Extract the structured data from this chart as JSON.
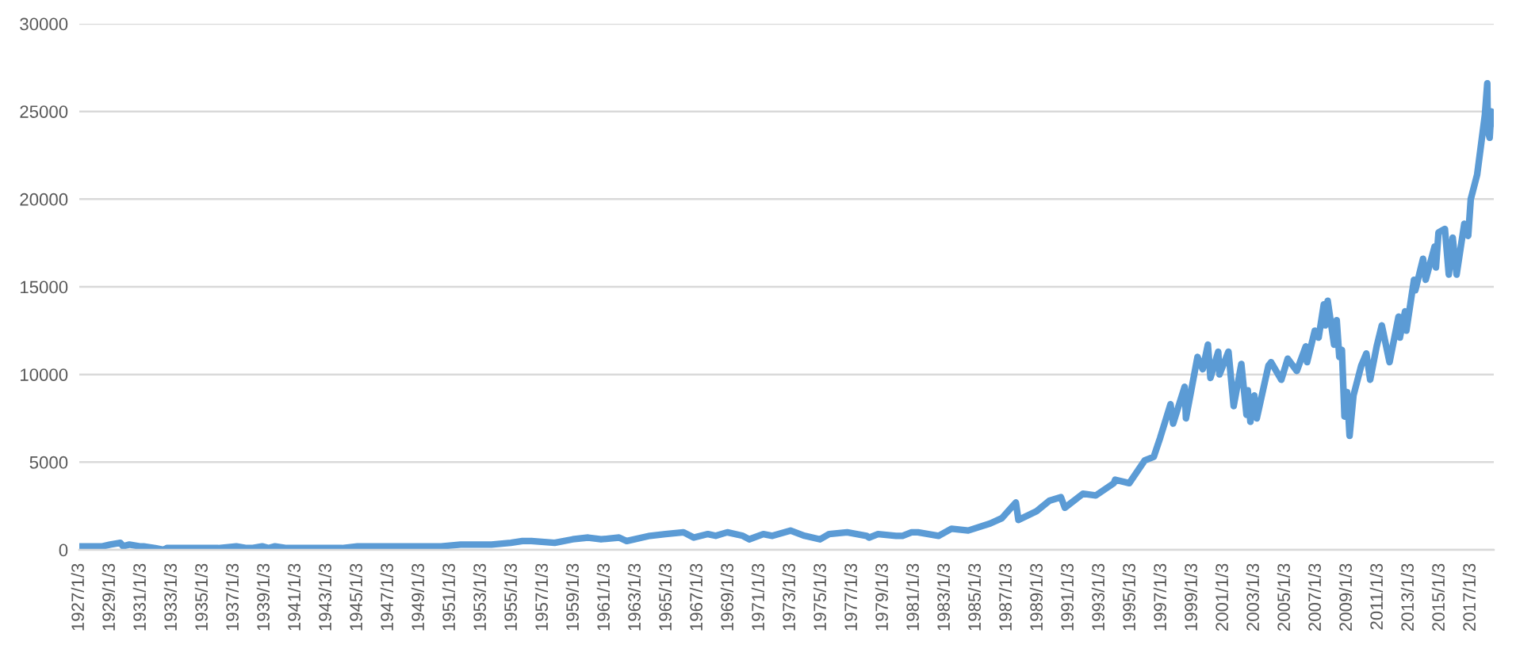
{
  "chart_data": {
    "type": "line",
    "x": [
      "1927-01-03",
      "1927-07",
      "1928-01",
      "1928-07",
      "1929-01",
      "1929-09",
      "1929-11",
      "1930-04",
      "1930-12",
      "1931-03",
      "1931-12",
      "1932-07",
      "1932-09",
      "1933-02",
      "1933-07",
      "1934-02",
      "1934-07",
      "1935-03",
      "1936-01",
      "1937-03",
      "1937-11",
      "1938-03",
      "1938-11",
      "1939-04",
      "1939-09",
      "1940-06",
      "1941-01",
      "1942-04",
      "1943-07",
      "1944-01",
      "1945-01",
      "1946-05",
      "1946-10",
      "1947-05",
      "1948-06",
      "1949-06",
      "1950-06",
      "1951-09",
      "1952-12",
      "1953-09",
      "1954-12",
      "1955-09",
      "1956-04",
      "1957-10",
      "1958-12",
      "1959-12",
      "1960-10",
      "1961-12",
      "1962-06",
      "1963-12",
      "1964-12",
      "1966-02",
      "1966-10",
      "1967-09",
      "1968-03",
      "1968-12",
      "1969-12",
      "1970-05",
      "1971-04",
      "1971-11",
      "1973-01",
      "1973-12",
      "1974-12",
      "1975-07",
      "1976-09",
      "1977-12",
      "1978-02",
      "1978-09",
      "1979-11",
      "1980-04",
      "1980-11",
      "1981-04",
      "1982-08",
      "1983-06",
      "1984-07",
      "1985-12",
      "1986-09",
      "1987-08",
      "1987-10",
      "1988-12",
      "1989-10",
      "1990-07",
      "1990-10",
      "1991-12",
      "1992-10",
      "1993-12",
      "1994-01",
      "1994-12",
      "1995-12",
      "1996-07",
      "1996-12",
      "1997-08",
      "1997-10",
      "1998-07",
      "1998-08",
      "1999-05",
      "1999-09",
      "2000-01",
      "2000-03",
      "2000-09",
      "2000-10",
      "2001-05",
      "2001-09",
      "2002-03",
      "2002-07",
      "2002-08",
      "2002-10",
      "2003-01",
      "2003-03",
      "2003-12",
      "2004-02",
      "2004-10",
      "2005-03",
      "2005-10",
      "2006-05",
      "2006-06",
      "2006-12",
      "2007-03",
      "2007-07",
      "2007-08",
      "2007-10",
      "2008-03",
      "2008-05",
      "2008-07",
      "2008-09",
      "2008-11",
      "2009-01",
      "2009-03",
      "2009-06",
      "2009-12",
      "2010-04",
      "2010-07",
      "2010-12",
      "2011-04",
      "2011-10",
      "2012-05",
      "2012-06",
      "2012-10",
      "2012-11",
      "2013-05",
      "2013-06",
      "2013-12",
      "2014-02",
      "2014-09",
      "2014-10",
      "2014-12",
      "2015-05",
      "2015-08",
      "2015-11",
      "2016-02",
      "2016-08",
      "2016-11",
      "2017-01",
      "2017-06",
      "2017-12",
      "2018-01-26",
      "2018-02-08",
      "2018-03-23",
      "2018-05",
      "2018-06-29"
    ],
    "series": [
      {
        "color": "#5b9bd5",
        "values": [
          200,
          200,
          200,
          200,
          300,
          400,
          200,
          300,
          200,
          200,
          100,
          0,
          100,
          100,
          100,
          100,
          100,
          100,
          100,
          200,
          100,
          100,
          200,
          100,
          200,
          100,
          100,
          100,
          100,
          100,
          200,
          200,
          200,
          200,
          200,
          200,
          200,
          300,
          300,
          300,
          400,
          500,
          500,
          400,
          600,
          700,
          600,
          700,
          500,
          800,
          900,
          1000,
          700,
          900,
          800,
          1000,
          800,
          600,
          900,
          800,
          1100,
          800,
          600,
          900,
          1000,
          800,
          700,
          900,
          800,
          800,
          1000,
          1000,
          800,
          1200,
          1100,
          1500,
          1800,
          2700,
          1700,
          2200,
          2800,
          3000,
          2400,
          3200,
          3100,
          3800,
          4000,
          3800,
          5100,
          5300,
          6400,
          8300,
          7200,
          9300,
          7500,
          11000,
          10300,
          11700,
          9800,
          11300,
          10000,
          11300,
          8200,
          10600,
          7700,
          9100,
          7300,
          8800,
          7500,
          10500,
          10700,
          9700,
          10900,
          10200,
          11600,
          10700,
          12500,
          12100,
          14000,
          12800,
          14200,
          11700,
          13100,
          11000,
          11400,
          7600,
          9000,
          6500,
          8800,
          10500,
          11200,
          9700,
          11600,
          12800,
          10700,
          13300,
          12100,
          13600,
          12500,
          15400,
          14800,
          16600,
          15400,
          17300,
          16100,
          18100,
          18300,
          15700,
          17800,
          15700,
          18600,
          17900,
          20000,
          21400,
          24800,
          26600,
          23900,
          23500,
          25000,
          24300
        ]
      }
    ],
    "xlim": [
      "1927-01-03",
      "2018-06-29"
    ],
    "xticks": [
      {
        "value": "1927-01-03",
        "label": "1927/1/3"
      },
      {
        "value": "1929-01-03",
        "label": "1929/1/3"
      },
      {
        "value": "1931-01-03",
        "label": "1931/1/3"
      },
      {
        "value": "1933-01-03",
        "label": "1933/1/3"
      },
      {
        "value": "1935-01-03",
        "label": "1935/1/3"
      },
      {
        "value": "1937-01-03",
        "label": "1937/1/3"
      },
      {
        "value": "1939-01-03",
        "label": "1939/1/3"
      },
      {
        "value": "1941-01-03",
        "label": "1941/1/3"
      },
      {
        "value": "1943-01-03",
        "label": "1943/1/3"
      },
      {
        "value": "1945-01-03",
        "label": "1945/1/3"
      },
      {
        "value": "1947-01-03",
        "label": "1947/1/3"
      },
      {
        "value": "1949-01-03",
        "label": "1949/1/3"
      },
      {
        "value": "1951-01-03",
        "label": "1951/1/3"
      },
      {
        "value": "1953-01-03",
        "label": "1953/1/3"
      },
      {
        "value": "1955-01-03",
        "label": "1955/1/3"
      },
      {
        "value": "1957-01-03",
        "label": "1957/1/3"
      },
      {
        "value": "1959-01-03",
        "label": "1959/1/3"
      },
      {
        "value": "1961-01-03",
        "label": "1961/1/3"
      },
      {
        "value": "1963-01-03",
        "label": "1963/1/3"
      },
      {
        "value": "1965-01-03",
        "label": "1965/1/3"
      },
      {
        "value": "1967-01-03",
        "label": "1967/1/3"
      },
      {
        "value": "1969-01-03",
        "label": "1969/1/3"
      },
      {
        "value": "1971-01-03",
        "label": "1971/1/3"
      },
      {
        "value": "1973-01-03",
        "label": "1973/1/3"
      },
      {
        "value": "1975-01-03",
        "label": "1975/1/3"
      },
      {
        "value": "1977-01-03",
        "label": "1977/1/3"
      },
      {
        "value": "1979-01-03",
        "label": "1979/1/3"
      },
      {
        "value": "1981-01-03",
        "label": "1981/1/3"
      },
      {
        "value": "1983-01-03",
        "label": "1983/1/3"
      },
      {
        "value": "1985-01-03",
        "label": "1985/1/3"
      },
      {
        "value": "1987-01-03",
        "label": "1987/1/3"
      },
      {
        "value": "1989-01-03",
        "label": "1989/1/3"
      },
      {
        "value": "1991-01-03",
        "label": "1991/1/3"
      },
      {
        "value": "1993-01-03",
        "label": "1993/1/3"
      },
      {
        "value": "1995-01-03",
        "label": "1995/1/3"
      },
      {
        "value": "1997-01-03",
        "label": "1997/1/3"
      },
      {
        "value": "1999-01-03",
        "label": "1999/1/3"
      },
      {
        "value": "2001-01-03",
        "label": "2001/1/3"
      },
      {
        "value": "2003-01-03",
        "label": "2003/1/3"
      },
      {
        "value": "2005-01-03",
        "label": "2005/1/3"
      },
      {
        "value": "2007-01-03",
        "label": "2007/1/3"
      },
      {
        "value": "2009-01-03",
        "label": "2009/1/3"
      },
      {
        "value": "2011-01-03",
        "label": "2011/1/3"
      },
      {
        "value": "2013-01-03",
        "label": "2013/1/3"
      },
      {
        "value": "2015-01-03",
        "label": "2015/1/3"
      },
      {
        "value": "2017-01-03",
        "label": "2017/1/3"
      }
    ],
    "ylim": [
      0,
      30000
    ],
    "yticks": [
      0,
      5000,
      10000,
      15000,
      20000,
      25000,
      30000
    ],
    "grid": "y",
    "line_style": "solid"
  }
}
